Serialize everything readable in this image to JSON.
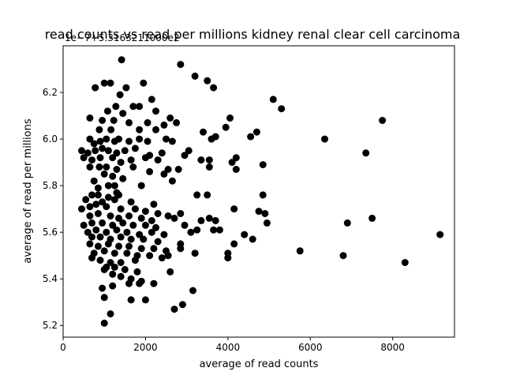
{
  "chart_data": {
    "type": "scatter",
    "title": "read counts vs read per millions kidney renal clear cell carcinoma",
    "offset_label": "1e−7+5.3163211000e2",
    "xlabel": "average of read counts",
    "ylabel": "average of read per millions",
    "xlim": [
      0,
      9500
    ],
    "ylim": [
      5.15,
      6.4
    ],
    "xticks": [
      0,
      2000,
      4000,
      6000,
      8000
    ],
    "xtick_labels": [
      "0",
      "2000",
      "4000",
      "6000",
      "8000"
    ],
    "yticks": [
      5.2,
      5.4,
      5.6,
      5.8,
      6.0,
      6.2
    ],
    "ytick_labels": [
      "5.2",
      "5.4",
      "5.6",
      "5.8",
      "6.0",
      "6.2"
    ],
    "grid": false,
    "marker_color": "#000000",
    "points": [
      [
        1420,
        6.34
      ],
      [
        2850,
        6.32
      ],
      [
        3200,
        6.27
      ],
      [
        3500,
        6.25
      ],
      [
        3650,
        6.22
      ],
      [
        1000,
        6.24
      ],
      [
        1150,
        6.24
      ],
      [
        1950,
        6.24
      ],
      [
        780,
        6.22
      ],
      [
        1530,
        6.22
      ],
      [
        1380,
        6.19
      ],
      [
        2150,
        6.17
      ],
      [
        1850,
        6.14
      ],
      [
        1700,
        6.14
      ],
      [
        1280,
        6.14
      ],
      [
        5100,
        6.17
      ],
      [
        5300,
        6.13
      ],
      [
        1080,
        6.12
      ],
      [
        1450,
        6.11
      ],
      [
        2250,
        6.12
      ],
      [
        2600,
        6.09
      ],
      [
        4050,
        6.09
      ],
      [
        7750,
        6.08
      ],
      [
        650,
        6.09
      ],
      [
        950,
        6.08
      ],
      [
        1230,
        6.08
      ],
      [
        1600,
        6.07
      ],
      [
        2050,
        6.07
      ],
      [
        2450,
        6.06
      ],
      [
        2750,
        6.07
      ],
      [
        3950,
        6.05
      ],
      [
        880,
        6.04
      ],
      [
        1160,
        6.04
      ],
      [
        1850,
        6.04
      ],
      [
        2250,
        6.04
      ],
      [
        3400,
        6.03
      ],
      [
        3700,
        6.01
      ],
      [
        3600,
        6.0
      ],
      [
        4550,
        6.01
      ],
      [
        4700,
        6.03
      ],
      [
        6350,
        6.0
      ],
      [
        7350,
        5.94
      ],
      [
        4100,
        5.9
      ],
      [
        4200,
        5.92
      ],
      [
        4200,
        5.87
      ],
      [
        4850,
        5.89
      ],
      [
        3050,
        5.95
      ],
      [
        2950,
        5.93
      ],
      [
        3350,
        5.91
      ],
      [
        3550,
        5.91
      ],
      [
        3550,
        5.88
      ],
      [
        2800,
        5.87
      ],
      [
        2550,
        5.87
      ],
      [
        2450,
        5.85
      ],
      [
        2300,
        5.91
      ],
      [
        650,
        6.0
      ],
      [
        750,
        5.98
      ],
      [
        900,
        5.99
      ],
      [
        1050,
        6.0
      ],
      [
        1250,
        5.99
      ],
      [
        1350,
        6.0
      ],
      [
        1600,
        5.99
      ],
      [
        1850,
        6.0
      ],
      [
        2050,
        5.99
      ],
      [
        2500,
        6.0
      ],
      [
        2650,
        5.99
      ],
      [
        450,
        5.95
      ],
      [
        600,
        5.94
      ],
      [
        780,
        5.95
      ],
      [
        950,
        5.96
      ],
      [
        1100,
        5.95
      ],
      [
        1300,
        5.94
      ],
      [
        1500,
        5.95
      ],
      [
        1750,
        5.96
      ],
      [
        2100,
        5.93
      ],
      [
        2400,
        5.94
      ],
      [
        500,
        5.92
      ],
      [
        700,
        5.91
      ],
      [
        900,
        5.92
      ],
      [
        1200,
        5.92
      ],
      [
        1400,
        5.9
      ],
      [
        1650,
        5.91
      ],
      [
        2000,
        5.92
      ],
      [
        650,
        5.88
      ],
      [
        880,
        5.88
      ],
      [
        1050,
        5.88
      ],
      [
        1300,
        5.87
      ],
      [
        1700,
        5.88
      ],
      [
        2100,
        5.86
      ],
      [
        1000,
        5.85
      ],
      [
        1200,
        5.84
      ],
      [
        750,
        5.82
      ],
      [
        1450,
        5.83
      ],
      [
        2650,
        5.82
      ],
      [
        1100,
        5.8
      ],
      [
        1250,
        5.8
      ],
      [
        1900,
        5.8
      ],
      [
        850,
        5.79
      ],
      [
        1300,
        5.77
      ],
      [
        850,
        5.76
      ],
      [
        700,
        5.76
      ],
      [
        1100,
        5.75
      ],
      [
        1350,
        5.76
      ],
      [
        3250,
        5.76
      ],
      [
        3500,
        5.76
      ],
      [
        4850,
        5.76
      ],
      [
        550,
        5.74
      ],
      [
        950,
        5.73
      ],
      [
        1250,
        5.74
      ],
      [
        1650,
        5.73
      ],
      [
        2200,
        5.72
      ],
      [
        4150,
        5.7
      ],
      [
        450,
        5.7
      ],
      [
        650,
        5.71
      ],
      [
        800,
        5.72
      ],
      [
        1050,
        5.71
      ],
      [
        1400,
        5.7
      ],
      [
        1750,
        5.7
      ],
      [
        2000,
        5.69
      ],
      [
        2300,
        5.68
      ],
      [
        2550,
        5.67
      ],
      [
        2850,
        5.68
      ],
      [
        4750,
        5.69
      ],
      [
        4900,
        5.68
      ],
      [
        7500,
        5.66
      ],
      [
        650,
        5.67
      ],
      [
        850,
        5.68
      ],
      [
        1150,
        5.67
      ],
      [
        1350,
        5.66
      ],
      [
        1600,
        5.67
      ],
      [
        1900,
        5.66
      ],
      [
        2150,
        5.65
      ],
      [
        2700,
        5.66
      ],
      [
        3350,
        5.65
      ],
      [
        3550,
        5.66
      ],
      [
        3700,
        5.65
      ],
      [
        4950,
        5.64
      ],
      [
        6900,
        5.64
      ],
      [
        500,
        5.63
      ],
      [
        700,
        5.64
      ],
      [
        950,
        5.64
      ],
      [
        1200,
        5.63
      ],
      [
        1450,
        5.64
      ],
      [
        1700,
        5.63
      ],
      [
        2000,
        5.63
      ],
      [
        2250,
        5.62
      ],
      [
        2950,
        5.63
      ],
      [
        3250,
        5.61
      ],
      [
        3650,
        5.61
      ],
      [
        3800,
        5.61
      ],
      [
        600,
        5.6
      ],
      [
        800,
        5.61
      ],
      [
        1050,
        5.6
      ],
      [
        1300,
        5.61
      ],
      [
        1550,
        5.6
      ],
      [
        1850,
        5.59
      ],
      [
        2150,
        5.6
      ],
      [
        2450,
        5.59
      ],
      [
        3100,
        5.6
      ],
      [
        4400,
        5.59
      ],
      [
        4600,
        5.57
      ],
      [
        9150,
        5.59
      ],
      [
        700,
        5.58
      ],
      [
        900,
        5.58
      ],
      [
        1150,
        5.57
      ],
      [
        1400,
        5.58
      ],
      [
        1650,
        5.57
      ],
      [
        1950,
        5.57
      ],
      [
        2300,
        5.56
      ],
      [
        2850,
        5.55
      ],
      [
        4150,
        5.55
      ],
      [
        650,
        5.55
      ],
      [
        850,
        5.54
      ],
      [
        1100,
        5.55
      ],
      [
        1350,
        5.54
      ],
      [
        1600,
        5.54
      ],
      [
        1900,
        5.53
      ],
      [
        2200,
        5.53
      ],
      [
        2500,
        5.52
      ],
      [
        2850,
        5.53
      ],
      [
        5750,
        5.52
      ],
      [
        750,
        5.51
      ],
      [
        1000,
        5.52
      ],
      [
        1250,
        5.51
      ],
      [
        1550,
        5.51
      ],
      [
        1800,
        5.5
      ],
      [
        2100,
        5.5
      ],
      [
        2400,
        5.49
      ],
      [
        3200,
        5.51
      ],
      [
        4000,
        5.51
      ],
      [
        6800,
        5.5
      ],
      [
        700,
        5.49
      ],
      [
        900,
        5.48
      ],
      [
        1150,
        5.47
      ],
      [
        1400,
        5.47
      ],
      [
        1750,
        5.48
      ],
      [
        2550,
        5.5
      ],
      [
        4000,
        5.49
      ],
      [
        8300,
        5.47
      ],
      [
        1050,
        5.45
      ],
      [
        1250,
        5.45
      ],
      [
        1500,
        5.44
      ],
      [
        1800,
        5.43
      ],
      [
        2600,
        5.43
      ],
      [
        1000,
        5.44
      ],
      [
        1200,
        5.42
      ],
      [
        1400,
        5.41
      ],
      [
        1650,
        5.4
      ],
      [
        1900,
        5.39
      ],
      [
        2200,
        5.38
      ],
      [
        1850,
        5.38
      ],
      [
        1600,
        5.38
      ],
      [
        950,
        5.36
      ],
      [
        1200,
        5.37
      ],
      [
        3150,
        5.35
      ],
      [
        1000,
        5.32
      ],
      [
        1650,
        5.31
      ],
      [
        2000,
        5.31
      ],
      [
        2900,
        5.29
      ],
      [
        2700,
        5.27
      ],
      [
        1150,
        5.25
      ],
      [
        1000,
        5.21
      ]
    ]
  }
}
